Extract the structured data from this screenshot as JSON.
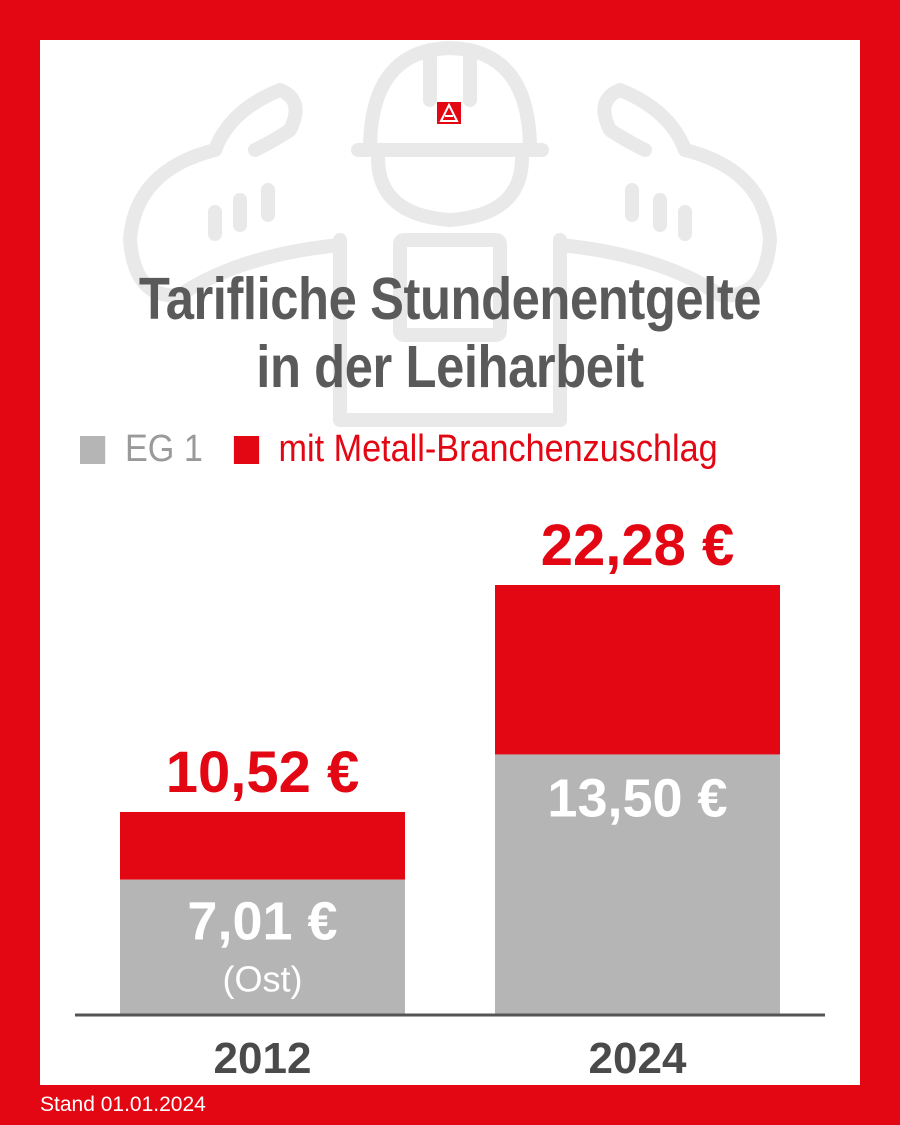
{
  "title_lines": [
    "Tarifliche Stundenentgelte",
    "in der Leiharbeit"
  ],
  "legend": [
    {
      "label": "EG 1",
      "color": "#b5b5b5"
    },
    {
      "label": "mit Metall-Branchenzuschlag",
      "color": "#e30613"
    }
  ],
  "footer_note": "Stand 01.01.2024",
  "logo_icon": "ig-metall-logo-icon",
  "background_icon": "strong-worker-with-hardhat-icon",
  "colors": {
    "brand_red": "#e30613",
    "bar_gray": "#b5b5b5",
    "title_gray": "#5a5a5a",
    "axis": "#555555"
  },
  "chart_data": {
    "type": "bar",
    "stacked": true,
    "categories": [
      "2012",
      "2024"
    ],
    "series": [
      {
        "name": "EG 1",
        "values": [
          7.01,
          13.5
        ],
        "labels": [
          "7,01 €",
          "13,50 €"
        ],
        "sublabels": [
          "(Ost)",
          ""
        ],
        "color": "#b5b5b5"
      },
      {
        "name": "mit Metall-Branchenzuschlag",
        "totals": [
          10.52,
          22.28
        ],
        "labels": [
          "10,52 €",
          "22,28 €"
        ],
        "color": "#e30613"
      }
    ],
    "ylim": [
      0,
      22.28
    ],
    "grid": false,
    "legend_position": "top-left",
    "xlabel": "",
    "ylabel": ""
  }
}
